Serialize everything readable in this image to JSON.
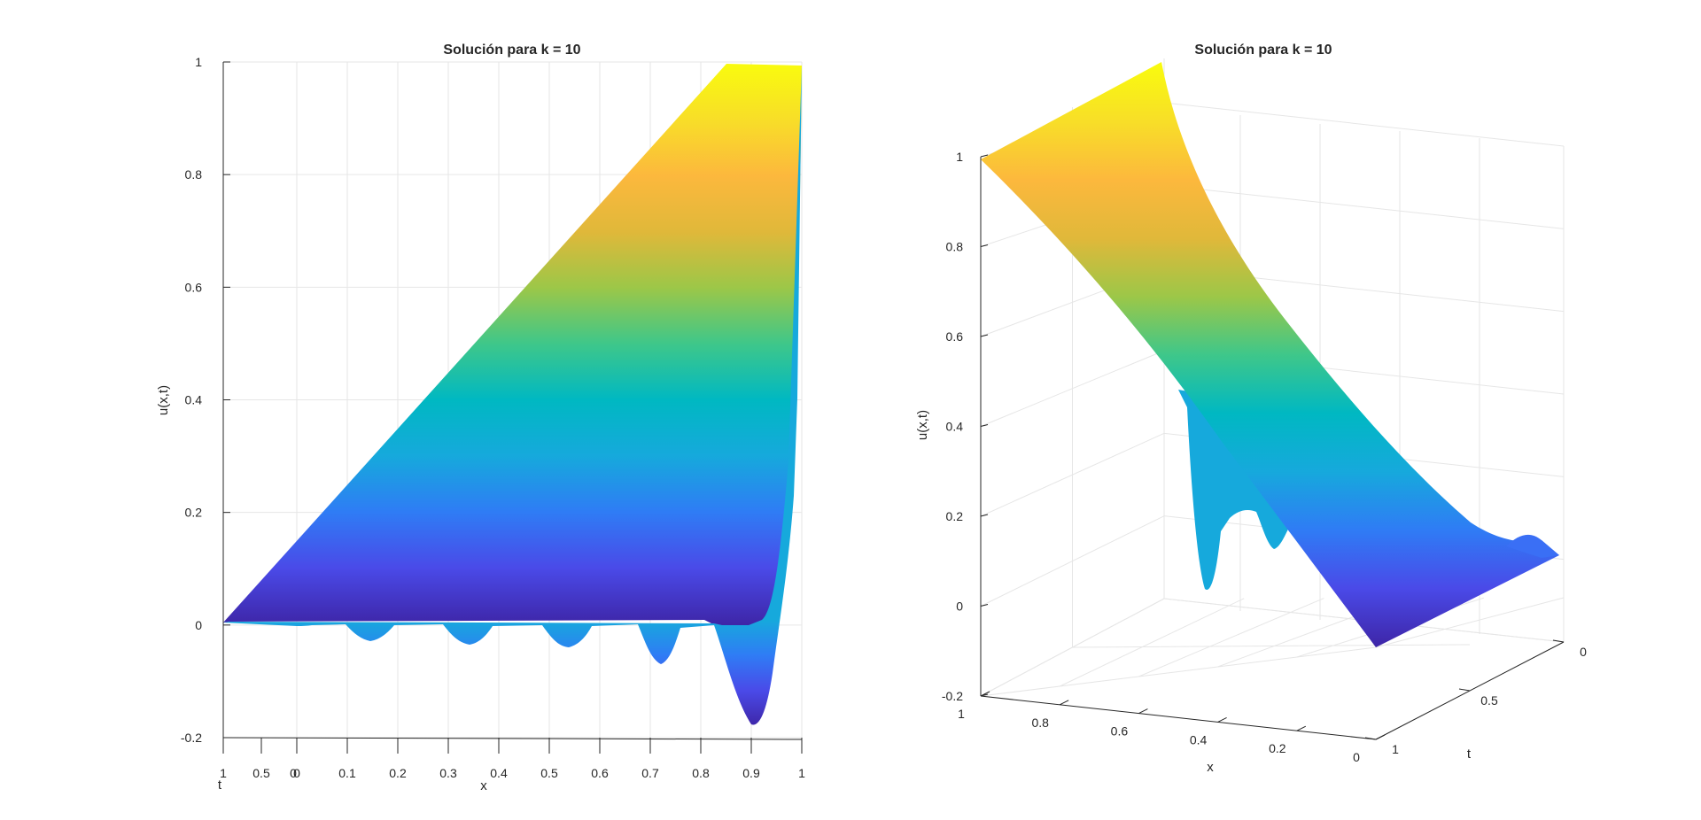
{
  "colors": {
    "colormap": [
      "#3e26a8",
      "#4a4ae8",
      "#2f7cf5",
      "#16a9dc",
      "#00b8c2",
      "#3ec78a",
      "#9cc748",
      "#e0b83a",
      "#fcb83d",
      "#f8de28",
      "#f9fb0e"
    ],
    "axis": "#262626",
    "grid": "#e6e6e6"
  },
  "chart_data": [
    {
      "type": "surface",
      "title": "Solución para k = 10",
      "xlabel": "x",
      "tlabel": "t",
      "zlabel": "u(x,t)",
      "xlim": [
        0,
        1
      ],
      "tlim": [
        0,
        1
      ],
      "zlim": [
        -0.2,
        1
      ],
      "x_ticks": [
        "0",
        "0.1",
        "0.2",
        "0.3",
        "0.4",
        "0.5",
        "0.6",
        "0.7",
        "0.8",
        "0.9",
        "1"
      ],
      "t_ticks": [
        "1",
        "0.5",
        "0"
      ],
      "z_ticks": [
        "-0.2",
        "0",
        "0.2",
        "0.4",
        "0.6",
        "0.8",
        "1"
      ],
      "grid": true,
      "view": "front (x-z plane)",
      "t_at_zero_profile": {
        "x": [
          0,
          0.14,
          0.33,
          0.52,
          0.72,
          0.9,
          1
        ],
        "u": [
          0,
          -0.035,
          -0.04,
          -0.05,
          -0.07,
          -0.18,
          1
        ]
      },
      "steady_state": {
        "x": [
          0,
          1
        ],
        "u": [
          0,
          1
        ]
      }
    },
    {
      "type": "surface",
      "title": "Solución para k = 10",
      "xlabel": "x",
      "tlabel": "t",
      "zlabel": "u(x,t)",
      "xlim": [
        0,
        1
      ],
      "tlim": [
        0,
        1
      ],
      "zlim": [
        -0.2,
        1
      ],
      "x_ticks": [
        "1",
        "0.8",
        "0.6",
        "0.4",
        "0.2",
        "0"
      ],
      "t_ticks": [
        "0",
        "0.5",
        "1"
      ],
      "z_ticks": [
        "-0.2",
        "0",
        "0.2",
        "0.4",
        "0.6",
        "0.8",
        "1"
      ],
      "grid": true,
      "view": "3-D rotated"
    }
  ]
}
